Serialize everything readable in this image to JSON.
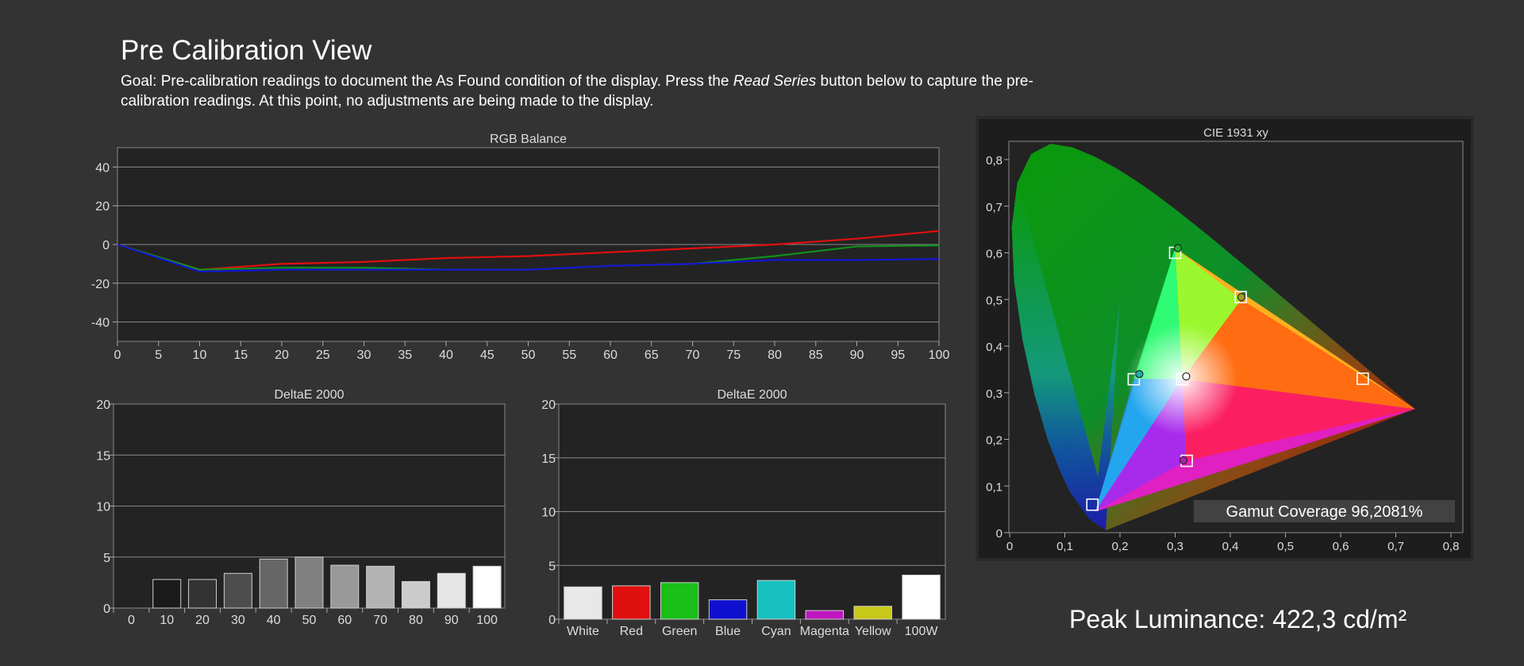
{
  "page": {
    "title": "Pre Calibration View",
    "goal_prefix": "Goal: Pre-calibration readings to document the As Found condition of the display. Press the ",
    "goal_button": "Read Series",
    "goal_suffix": " button below to capture the pre-calibration readings. At this point, no adjustments are being made to the display.",
    "peak_luminance": "Peak Luminance: 422,3 cd/m²"
  },
  "colors": {
    "background": "#333333",
    "plot_bg": "#232323",
    "red": "#e01010",
    "green": "#10901a",
    "blue": "#1515d0"
  },
  "chart_data": [
    {
      "type": "line",
      "title": "RGB Balance",
      "x": [
        0,
        10,
        20,
        30,
        40,
        50,
        60,
        70,
        80,
        90,
        100
      ],
      "xticks": [
        0,
        5,
        10,
        15,
        20,
        25,
        30,
        35,
        40,
        45,
        50,
        55,
        60,
        65,
        70,
        75,
        80,
        85,
        90,
        95,
        100
      ],
      "yticks": [
        40,
        20,
        0,
        -20,
        -40
      ],
      "xlim": [
        0,
        100
      ],
      "ylim": [
        -50,
        50
      ],
      "grid": true,
      "series": [
        {
          "color": "#e01010",
          "values": [
            0,
            -13,
            -10,
            -9,
            -7,
            -6,
            -4,
            -2,
            0,
            3,
            7
          ]
        },
        {
          "color": "#10901a",
          "values": [
            0,
            -13,
            -12,
            -12,
            -13,
            -13,
            -11,
            -10,
            -6,
            -1,
            -0.5
          ]
        },
        {
          "color": "#1515d0",
          "values": [
            0,
            -14,
            -13,
            -13,
            -13,
            -13,
            -11,
            -10,
            -8,
            -8,
            -7.5
          ]
        }
      ]
    },
    {
      "type": "bar",
      "title": "DeltaE 2000",
      "categories": [
        "0",
        "10",
        "20",
        "30",
        "40",
        "50",
        "60",
        "70",
        "80",
        "90",
        "100"
      ],
      "values": [
        0,
        2.8,
        2.8,
        3.4,
        4.8,
        5.0,
        4.2,
        4.1,
        2.6,
        3.4,
        4.1
      ],
      "colors": [
        "#000000",
        "#1a1a1a",
        "#333333",
        "#4d4d4d",
        "#666666",
        "#808080",
        "#999999",
        "#b3b3b3",
        "#cccccc",
        "#e6e6e6",
        "#ffffff"
      ],
      "yticks": [
        20,
        15,
        10,
        5,
        0
      ],
      "ylim": [
        0,
        20
      ],
      "grid": true
    },
    {
      "type": "bar",
      "title": "DeltaE 2000",
      "categories": [
        "White",
        "Red",
        "Green",
        "Blue",
        "Cyan",
        "Magenta",
        "Yellow",
        "100W"
      ],
      "values": [
        3.0,
        3.1,
        3.4,
        1.8,
        3.6,
        0.8,
        1.2,
        4.1
      ],
      "colors": [
        "#e8e8e8",
        "#e01010",
        "#18c018",
        "#1010d0",
        "#18c0c0",
        "#c018c0",
        "#c8c818",
        "#ffffff"
      ],
      "yticks": [
        20,
        15,
        10,
        5,
        0
      ],
      "ylim": [
        0,
        20
      ],
      "grid": true
    },
    {
      "type": "scatter",
      "title": "CIE 1931 xy",
      "xticks": [
        "0",
        "0,1",
        "0,2",
        "0,3",
        "0,4",
        "0,5",
        "0,6",
        "0,7",
        "0,8"
      ],
      "yticks": [
        "0,8",
        "0,7",
        "0,6",
        "0,5",
        "0,4",
        "0,3",
        "0,2",
        "0,1",
        "0"
      ],
      "xlim": [
        0,
        0.84
      ],
      "ylim": [
        0,
        0.84
      ],
      "gamut_coverage": "Gamut Coverage 96,2081%",
      "primaries_target": [
        [
          0.64,
          0.33
        ],
        [
          0.3,
          0.6
        ],
        [
          0.15,
          0.06
        ]
      ],
      "primaries_measured": [
        [
          0.735,
          0.265
        ],
        [
          0.3,
          0.61
        ],
        [
          0.155,
          0.045
        ]
      ],
      "targets": [
        {
          "name": "white",
          "x": 0.3127,
          "y": 0.329
        },
        {
          "name": "red",
          "x": 0.64,
          "y": 0.33
        },
        {
          "name": "green",
          "x": 0.3,
          "y": 0.6
        },
        {
          "name": "blue",
          "x": 0.15,
          "y": 0.06
        },
        {
          "name": "cyan",
          "x": 0.225,
          "y": 0.329
        },
        {
          "name": "magenta",
          "x": 0.321,
          "y": 0.154
        },
        {
          "name": "yellow",
          "x": 0.419,
          "y": 0.505
        }
      ],
      "measured": [
        {
          "name": "white",
          "x": 0.32,
          "y": 0.335,
          "color": "#ffffff"
        },
        {
          "name": "green",
          "x": 0.305,
          "y": 0.61,
          "color": "#20b030"
        },
        {
          "name": "cyan",
          "x": 0.235,
          "y": 0.34,
          "color": "#20b0b0"
        },
        {
          "name": "magenta",
          "x": 0.315,
          "y": 0.155,
          "color": "#b020b0"
        },
        {
          "name": "yellow",
          "x": 0.42,
          "y": 0.505,
          "color": "#a0a020"
        }
      ]
    }
  ]
}
